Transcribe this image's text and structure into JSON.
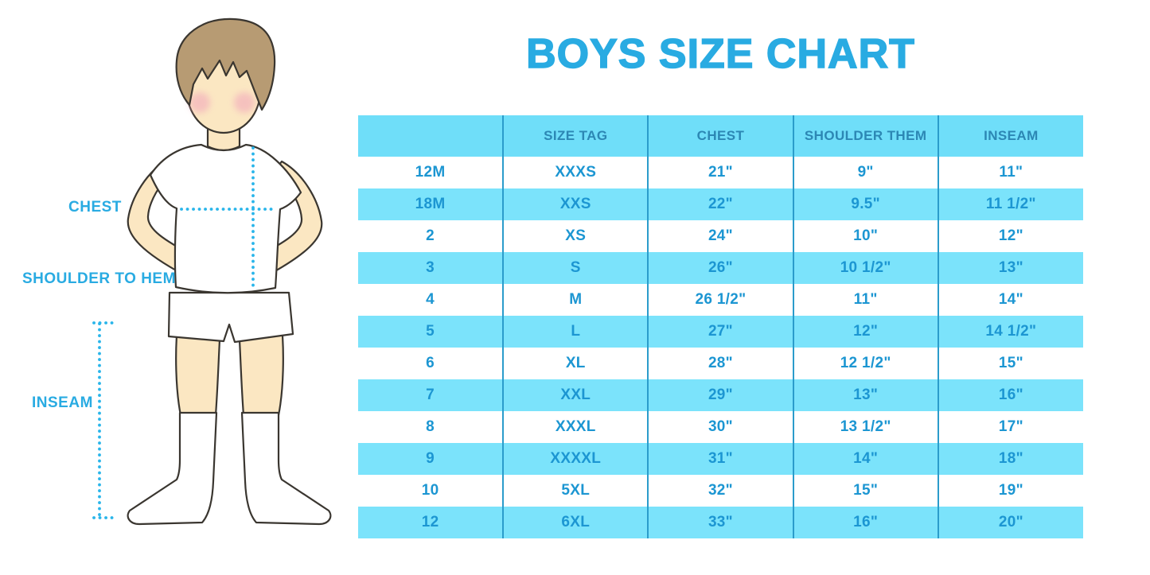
{
  "title": {
    "text": "BOYS SIZE CHART"
  },
  "figure": {
    "labels": {
      "chest": "CHEST",
      "shoulder_to_hem": "SHOULDER TO HEM",
      "inseam": "INSEAM"
    }
  },
  "colors": {
    "accent": "#29ABE2",
    "header_bg": "#6FDEF9",
    "row_alt": "#7BE3FB",
    "header_text": "#2C87B4",
    "cell_text": "#1C96D2",
    "col_border": "#2B9CCB",
    "dotted": "#29B5EA",
    "skin": "#FBE7C2",
    "hair": "#B79B73",
    "blush": "#F2A9BC"
  },
  "chart_data": {
    "type": "table",
    "title": "BOYS SIZE CHART",
    "columns": [
      "",
      "SIZE TAG",
      "CHEST",
      "SHOULDER THEM",
      "INSEAM"
    ],
    "rows": [
      [
        "12M",
        "XXXS",
        "21\"",
        "9\"",
        "11\""
      ],
      [
        "18M",
        "XXS",
        "22\"",
        "9.5\"",
        "11 1/2\""
      ],
      [
        "2",
        "XS",
        "24\"",
        "10\"",
        "12\""
      ],
      [
        "3",
        "S",
        "26\"",
        "10 1/2\"",
        "13\""
      ],
      [
        "4",
        "M",
        "26 1/2\"",
        "11\"",
        "14\""
      ],
      [
        "5",
        "L",
        "27\"",
        "12\"",
        "14 1/2\""
      ],
      [
        "6",
        "XL",
        "28\"",
        "12 1/2\"",
        "15\""
      ],
      [
        "7",
        "XXL",
        "29\"",
        "13\"",
        "16\""
      ],
      [
        "8",
        "XXXL",
        "30\"",
        "13 1/2\"",
        "17\""
      ],
      [
        "9",
        "XXXXL",
        "31\"",
        "14\"",
        "18\""
      ],
      [
        "10",
        "5XL",
        "32\"",
        "15\"",
        "19\""
      ],
      [
        "12",
        "6XL",
        "33\"",
        "16\"",
        "20\""
      ]
    ],
    "row_striping": "white / light-blue alternating, starting white",
    "legend_position": "none",
    "grid": "vertical column separators only"
  }
}
